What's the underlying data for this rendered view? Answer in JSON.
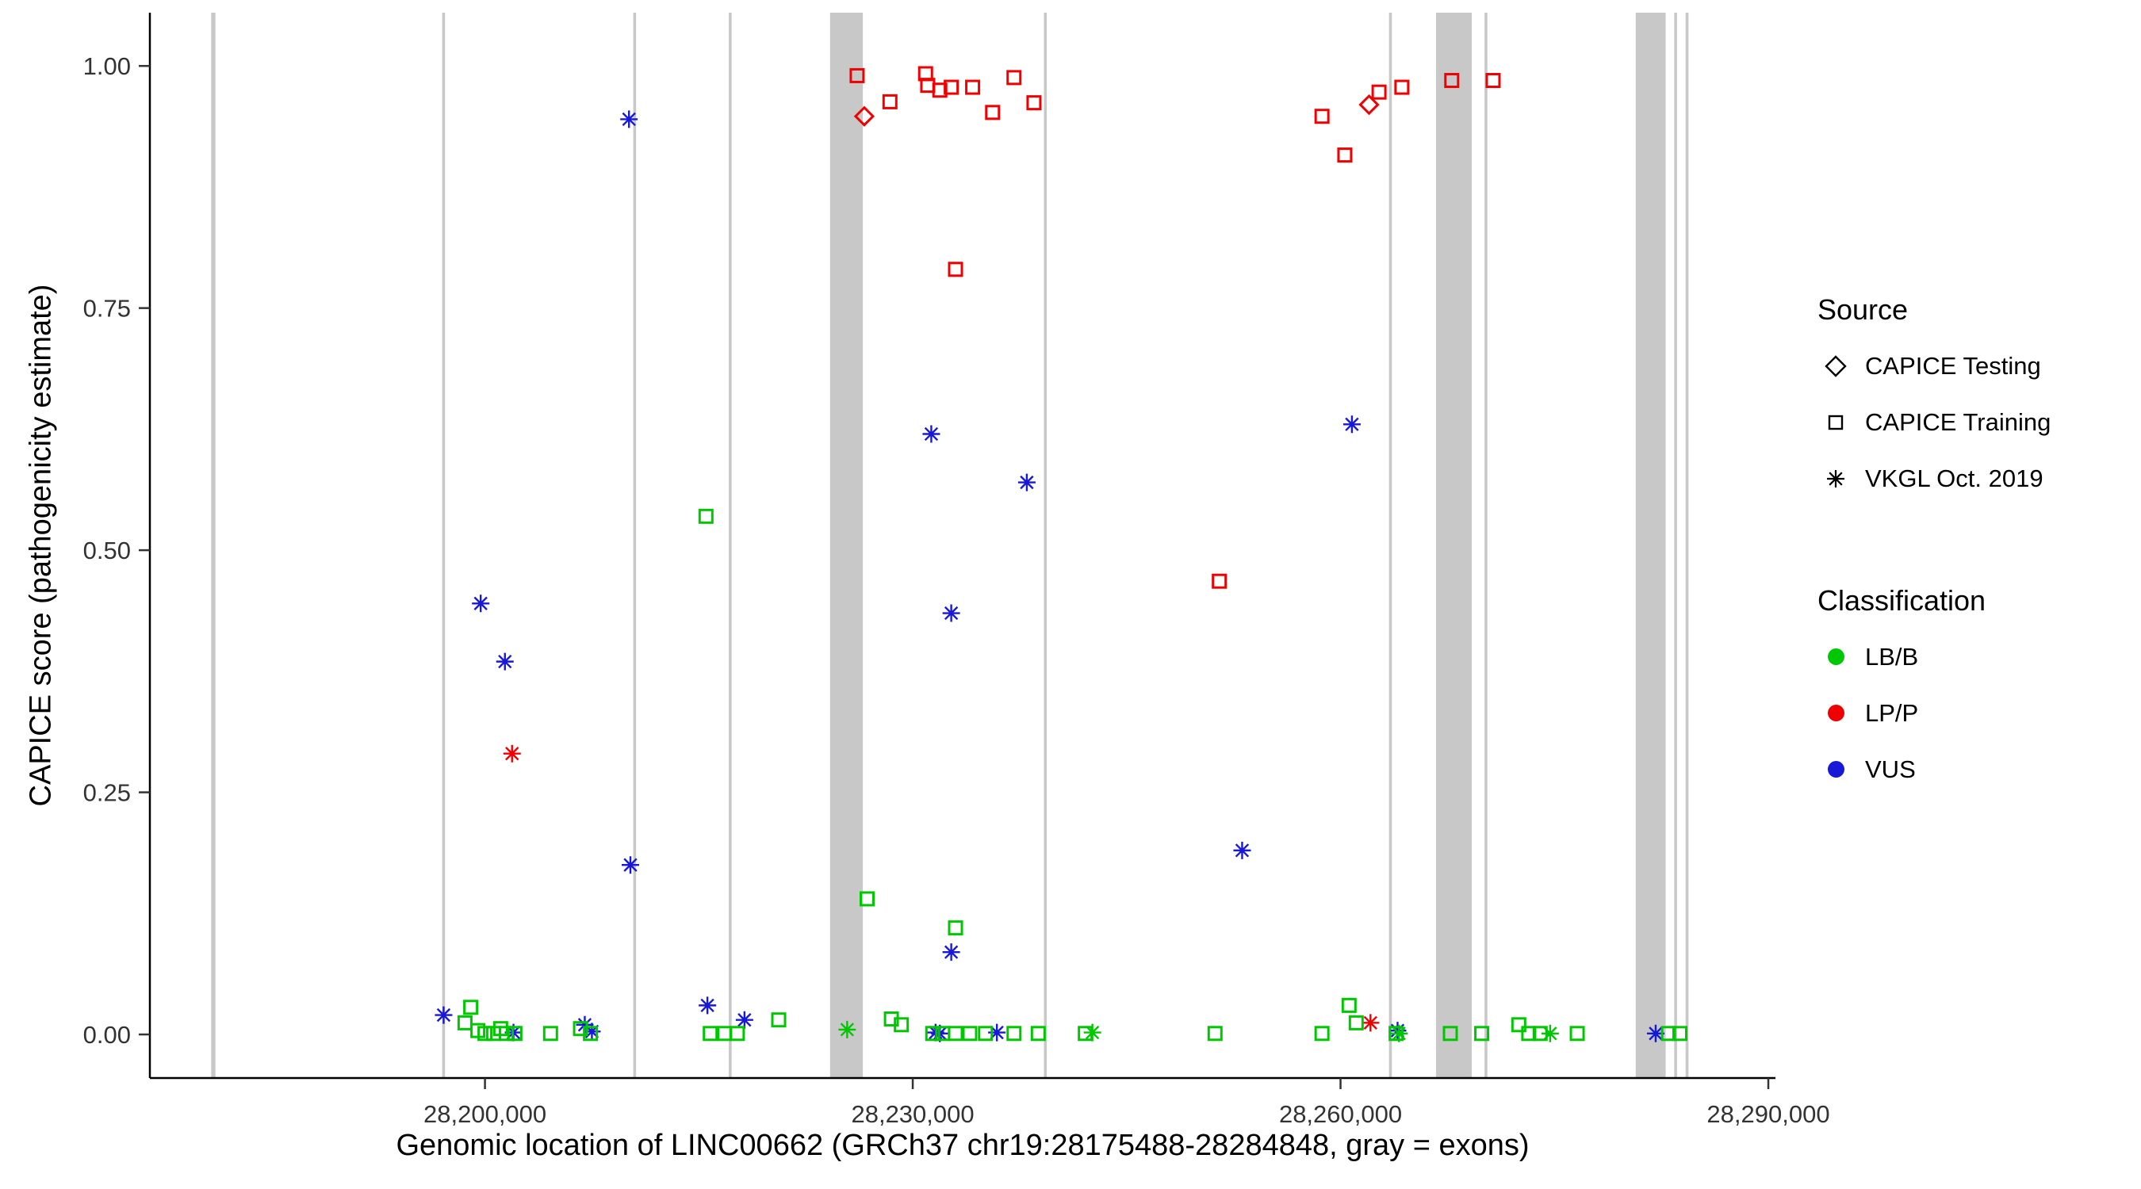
{
  "chart_data": {
    "type": "scatter",
    "xlabel": "Genomic location of LINC00662 (GRCh37 chr19:28175488-28284848, gray = exons)",
    "ylabel": "CAPICE score (pathogenicity estimate)",
    "xlim": [
      28176500,
      28290500
    ],
    "ylim": [
      -0.045,
      1.055
    ],
    "grid": false,
    "legend_position": "right",
    "x_ticks": [
      {
        "value": 28200000,
        "label": "28,200,000"
      },
      {
        "value": 28230000,
        "label": "28,230,000"
      },
      {
        "value": 28260000,
        "label": "28,260,000"
      },
      {
        "value": 28290000,
        "label": "28,290,000"
      }
    ],
    "y_ticks": [
      {
        "value": 0.0,
        "label": "0.00"
      },
      {
        "value": 0.25,
        "label": "0.25"
      },
      {
        "value": 0.5,
        "label": "0.50"
      },
      {
        "value": 0.75,
        "label": "0.75"
      },
      {
        "value": 1.0,
        "label": "1.00"
      }
    ],
    "exon_color": "#c8c8c8",
    "exons": [
      [
        28180800,
        28181100
      ],
      [
        28197000,
        28197200
      ],
      [
        28210400,
        28210600
      ],
      [
        28217100,
        28217300
      ],
      [
        28224200,
        28226500
      ],
      [
        28239200,
        28239400
      ],
      [
        28263400,
        28263600
      ],
      [
        28266700,
        28269200
      ],
      [
        28270100,
        28270300
      ],
      [
        28280700,
        28282800
      ],
      [
        28283400,
        28283600
      ],
      [
        28284200,
        28284400
      ]
    ],
    "classification_colors": {
      "LB/B": "#00c800",
      "LP/P": "#f00000",
      "VUS": "#1818d8"
    },
    "source_shapes": {
      "CAPICE Testing": "diamond",
      "CAPICE Training": "square",
      "VKGL Oct. 2019": "asterisk"
    },
    "points": [
      {
        "x": 28226100,
        "y": 0.99,
        "source": "CAPICE Training",
        "classification": "LP/P"
      },
      {
        "x": 28228400,
        "y": 0.963,
        "source": "CAPICE Training",
        "classification": "LP/P"
      },
      {
        "x": 28230900,
        "y": 0.992,
        "source": "CAPICE Training",
        "classification": "LP/P"
      },
      {
        "x": 28231050,
        "y": 0.98,
        "source": "CAPICE Training",
        "classification": "LP/P"
      },
      {
        "x": 28231900,
        "y": 0.975,
        "source": "CAPICE Training",
        "classification": "LP/P"
      },
      {
        "x": 28232700,
        "y": 0.978,
        "source": "CAPICE Training",
        "classification": "LP/P"
      },
      {
        "x": 28234200,
        "y": 0.978,
        "source": "CAPICE Training",
        "classification": "LP/P"
      },
      {
        "x": 28235600,
        "y": 0.952,
        "source": "CAPICE Training",
        "classification": "LP/P"
      },
      {
        "x": 28237100,
        "y": 0.988,
        "source": "CAPICE Training",
        "classification": "LP/P"
      },
      {
        "x": 28238500,
        "y": 0.962,
        "source": "CAPICE Training",
        "classification": "LP/P"
      },
      {
        "x": 28233000,
        "y": 0.79,
        "source": "CAPICE Training",
        "classification": "LP/P"
      },
      {
        "x": 28251500,
        "y": 0.468,
        "source": "CAPICE Training",
        "classification": "LP/P"
      },
      {
        "x": 28258700,
        "y": 0.948,
        "source": "CAPICE Training",
        "classification": "LP/P"
      },
      {
        "x": 28260300,
        "y": 0.908,
        "source": "CAPICE Training",
        "classification": "LP/P"
      },
      {
        "x": 28262700,
        "y": 0.973,
        "source": "CAPICE Training",
        "classification": "LP/P"
      },
      {
        "x": 28264300,
        "y": 0.978,
        "source": "CAPICE Training",
        "classification": "LP/P"
      },
      {
        "x": 28267800,
        "y": 0.985,
        "source": "CAPICE Training",
        "classification": "LP/P"
      },
      {
        "x": 28270700,
        "y": 0.985,
        "source": "CAPICE Training",
        "classification": "LP/P"
      },
      {
        "x": 28226600,
        "y": 0.948,
        "source": "CAPICE Testing",
        "classification": "LP/P"
      },
      {
        "x": 28262000,
        "y": 0.96,
        "source": "CAPICE Testing",
        "classification": "LP/P"
      },
      {
        "x": 28201900,
        "y": 0.29,
        "source": "VKGL Oct. 2019",
        "classification": "LP/P"
      },
      {
        "x": 28262100,
        "y": 0.012,
        "source": "VKGL Oct. 2019",
        "classification": "LP/P"
      },
      {
        "x": 28210100,
        "y": 0.945,
        "source": "VKGL Oct. 2019",
        "classification": "VUS"
      },
      {
        "x": 28199700,
        "y": 0.445,
        "source": "VKGL Oct. 2019",
        "classification": "VUS"
      },
      {
        "x": 28201400,
        "y": 0.385,
        "source": "VKGL Oct. 2019",
        "classification": "VUS"
      },
      {
        "x": 28210200,
        "y": 0.175,
        "source": "VKGL Oct. 2019",
        "classification": "VUS"
      },
      {
        "x": 28231300,
        "y": 0.62,
        "source": "VKGL Oct. 2019",
        "classification": "VUS"
      },
      {
        "x": 28238000,
        "y": 0.57,
        "source": "VKGL Oct. 2019",
        "classification": "VUS"
      },
      {
        "x": 28232700,
        "y": 0.435,
        "source": "VKGL Oct. 2019",
        "classification": "VUS"
      },
      {
        "x": 28232700,
        "y": 0.085,
        "source": "VKGL Oct. 2019",
        "classification": "VUS"
      },
      {
        "x": 28253100,
        "y": 0.19,
        "source": "VKGL Oct. 2019",
        "classification": "VUS"
      },
      {
        "x": 28260800,
        "y": 0.63,
        "source": "VKGL Oct. 2019",
        "classification": "VUS"
      },
      {
        "x": 28197100,
        "y": 0.02,
        "source": "VKGL Oct. 2019",
        "classification": "VUS"
      },
      {
        "x": 28202000,
        "y": 0.002,
        "source": "VKGL Oct. 2019",
        "classification": "VUS"
      },
      {
        "x": 28207000,
        "y": 0.01,
        "source": "VKGL Oct. 2019",
        "classification": "VUS"
      },
      {
        "x": 28207500,
        "y": 0.003,
        "source": "VKGL Oct. 2019",
        "classification": "VUS"
      },
      {
        "x": 28215600,
        "y": 0.03,
        "source": "VKGL Oct. 2019",
        "classification": "VUS"
      },
      {
        "x": 28218200,
        "y": 0.015,
        "source": "VKGL Oct. 2019",
        "classification": "VUS"
      },
      {
        "x": 28231600,
        "y": 0.002,
        "source": "VKGL Oct. 2019",
        "classification": "VUS"
      },
      {
        "x": 28231900,
        "y": 0.001,
        "source": "VKGL Oct. 2019",
        "classification": "VUS"
      },
      {
        "x": 28235900,
        "y": 0.002,
        "source": "VKGL Oct. 2019",
        "classification": "VUS"
      },
      {
        "x": 28264000,
        "y": 0.004,
        "source": "VKGL Oct. 2019",
        "classification": "VUS"
      },
      {
        "x": 28282100,
        "y": 0.001,
        "source": "VKGL Oct. 2019",
        "classification": "VUS"
      },
      {
        "x": 28225400,
        "y": 0.005,
        "source": "VKGL Oct. 2019",
        "classification": "LB/B"
      },
      {
        "x": 28242600,
        "y": 0.002,
        "source": "VKGL Oct. 2019",
        "classification": "LB/B"
      },
      {
        "x": 28264100,
        "y": 0.001,
        "source": "VKGL Oct. 2019",
        "classification": "LB/B"
      },
      {
        "x": 28274700,
        "y": 0.001,
        "source": "VKGL Oct. 2019",
        "classification": "LB/B"
      },
      {
        "x": 28215500,
        "y": 0.535,
        "source": "CAPICE Training",
        "classification": "LB/B"
      },
      {
        "x": 28226800,
        "y": 0.14,
        "source": "CAPICE Training",
        "classification": "LB/B"
      },
      {
        "x": 28233000,
        "y": 0.11,
        "source": "CAPICE Training",
        "classification": "LB/B"
      },
      {
        "x": 28198600,
        "y": 0.012,
        "source": "CAPICE Training",
        "classification": "LB/B"
      },
      {
        "x": 28199000,
        "y": 0.028,
        "source": "CAPICE Training",
        "classification": "LB/B"
      },
      {
        "x": 28199500,
        "y": 0.004,
        "source": "CAPICE Training",
        "classification": "LB/B"
      },
      {
        "x": 28200000,
        "y": 0.001,
        "source": "CAPICE Training",
        "classification": "LB/B"
      },
      {
        "x": 28200600,
        "y": 0.001,
        "source": "CAPICE Training",
        "classification": "LB/B"
      },
      {
        "x": 28201100,
        "y": 0.006,
        "source": "CAPICE Training",
        "classification": "LB/B"
      },
      {
        "x": 28201500,
        "y": 0.001,
        "source": "CAPICE Training",
        "classification": "LB/B"
      },
      {
        "x": 28202100,
        "y": 0.001,
        "source": "CAPICE Training",
        "classification": "LB/B"
      },
      {
        "x": 28204600,
        "y": 0.001,
        "source": "CAPICE Training",
        "classification": "LB/B"
      },
      {
        "x": 28206700,
        "y": 0.006,
        "source": "CAPICE Training",
        "classification": "LB/B"
      },
      {
        "x": 28207400,
        "y": 0.001,
        "source": "CAPICE Training",
        "classification": "LB/B"
      },
      {
        "x": 28215800,
        "y": 0.001,
        "source": "CAPICE Training",
        "classification": "LB/B"
      },
      {
        "x": 28216800,
        "y": 0.001,
        "source": "CAPICE Training",
        "classification": "LB/B"
      },
      {
        "x": 28217700,
        "y": 0.001,
        "source": "CAPICE Training",
        "classification": "LB/B"
      },
      {
        "x": 28220600,
        "y": 0.015,
        "source": "CAPICE Training",
        "classification": "LB/B"
      },
      {
        "x": 28228500,
        "y": 0.016,
        "source": "CAPICE Training",
        "classification": "LB/B"
      },
      {
        "x": 28229200,
        "y": 0.01,
        "source": "CAPICE Training",
        "classification": "LB/B"
      },
      {
        "x": 28231400,
        "y": 0.001,
        "source": "CAPICE Training",
        "classification": "LB/B"
      },
      {
        "x": 28232100,
        "y": 0.001,
        "source": "CAPICE Training",
        "classification": "LB/B"
      },
      {
        "x": 28233000,
        "y": 0.001,
        "source": "CAPICE Training",
        "classification": "LB/B"
      },
      {
        "x": 28234000,
        "y": 0.001,
        "source": "CAPICE Training",
        "classification": "LB/B"
      },
      {
        "x": 28235100,
        "y": 0.001,
        "source": "CAPICE Training",
        "classification": "LB/B"
      },
      {
        "x": 28237100,
        "y": 0.001,
        "source": "CAPICE Training",
        "classification": "LB/B"
      },
      {
        "x": 28238800,
        "y": 0.001,
        "source": "CAPICE Training",
        "classification": "LB/B"
      },
      {
        "x": 28242100,
        "y": 0.001,
        "source": "CAPICE Training",
        "classification": "LB/B"
      },
      {
        "x": 28251200,
        "y": 0.001,
        "source": "CAPICE Training",
        "classification": "LB/B"
      },
      {
        "x": 28258700,
        "y": 0.001,
        "source": "CAPICE Training",
        "classification": "LB/B"
      },
      {
        "x": 28260600,
        "y": 0.03,
        "source": "CAPICE Training",
        "classification": "LB/B"
      },
      {
        "x": 28261100,
        "y": 0.012,
        "source": "CAPICE Training",
        "classification": "LB/B"
      },
      {
        "x": 28263900,
        "y": 0.001,
        "source": "CAPICE Training",
        "classification": "LB/B"
      },
      {
        "x": 28267700,
        "y": 0.001,
        "source": "CAPICE Training",
        "classification": "LB/B"
      },
      {
        "x": 28269900,
        "y": 0.001,
        "source": "CAPICE Training",
        "classification": "LB/B"
      },
      {
        "x": 28272500,
        "y": 0.01,
        "source": "CAPICE Training",
        "classification": "LB/B"
      },
      {
        "x": 28273200,
        "y": 0.001,
        "source": "CAPICE Training",
        "classification": "LB/B"
      },
      {
        "x": 28274000,
        "y": 0.001,
        "source": "CAPICE Training",
        "classification": "LB/B"
      },
      {
        "x": 28276600,
        "y": 0.001,
        "source": "CAPICE Training",
        "classification": "LB/B"
      },
      {
        "x": 28283000,
        "y": 0.001,
        "source": "CAPICE Training",
        "classification": "LB/B"
      },
      {
        "x": 28283800,
        "y": 0.001,
        "source": "CAPICE Training",
        "classification": "LB/B"
      }
    ]
  },
  "legend": {
    "source": {
      "title": "Source",
      "items": [
        {
          "label": "CAPICE Testing",
          "shape": "diamond"
        },
        {
          "label": "CAPICE Training",
          "shape": "square"
        },
        {
          "label": "VKGL Oct. 2019",
          "shape": "asterisk"
        }
      ]
    },
    "classification": {
      "title": "Classification",
      "items": [
        {
          "label": "LB/B",
          "color": "#00c800"
        },
        {
          "label": "LP/P",
          "color": "#f00000"
        },
        {
          "label": "VUS",
          "color": "#1818d8"
        }
      ]
    }
  }
}
